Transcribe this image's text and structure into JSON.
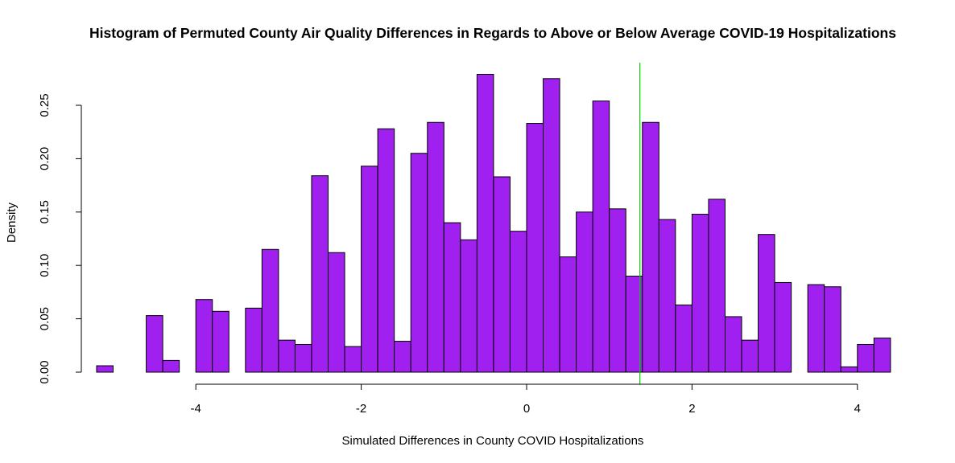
{
  "chart_data": {
    "type": "bar",
    "title": "Histogram of Permuted County Air Quality Differences in Regards to Above or Below Average COVID-19 Hospitalizations",
    "xlabel": "Simulated Differences in County COVID Hospitalizations",
    "ylabel": "Density",
    "xlim": [
      -5.2,
      4.4
    ],
    "ylim": [
      0,
      0.29
    ],
    "x_ticks": [
      "-4",
      "-2",
      "0",
      "2",
      "4"
    ],
    "x_tick_values": [
      -4,
      -2,
      0,
      2,
      4
    ],
    "y_ticks": [
      "0.00",
      "0.05",
      "0.10",
      "0.15",
      "0.20",
      "0.25"
    ],
    "y_tick_values": [
      0,
      0.05,
      0.1,
      0.15,
      0.2,
      0.25
    ],
    "bin_width": 0.2,
    "bins": [
      {
        "x0": -5.2,
        "x1": -5.0,
        "density": 0.006
      },
      {
        "x0": -5.0,
        "x1": -4.8,
        "density": 0.0
      },
      {
        "x0": -4.8,
        "x1": -4.6,
        "density": 0.0
      },
      {
        "x0": -4.6,
        "x1": -4.4,
        "density": 0.053
      },
      {
        "x0": -4.4,
        "x1": -4.2,
        "density": 0.011
      },
      {
        "x0": -4.2,
        "x1": -4.0,
        "density": 0.0
      },
      {
        "x0": -4.0,
        "x1": -3.8,
        "density": 0.068
      },
      {
        "x0": -3.8,
        "x1": -3.6,
        "density": 0.057
      },
      {
        "x0": -3.6,
        "x1": -3.4,
        "density": 0.0
      },
      {
        "x0": -3.4,
        "x1": -3.2,
        "density": 0.06
      },
      {
        "x0": -3.2,
        "x1": -3.0,
        "density": 0.115
      },
      {
        "x0": -3.0,
        "x1": -2.8,
        "density": 0.03
      },
      {
        "x0": -2.8,
        "x1": -2.6,
        "density": 0.026
      },
      {
        "x0": -2.6,
        "x1": -2.4,
        "density": 0.184
      },
      {
        "x0": -2.4,
        "x1": -2.2,
        "density": 0.112
      },
      {
        "x0": -2.2,
        "x1": -2.0,
        "density": 0.024
      },
      {
        "x0": -2.0,
        "x1": -1.8,
        "density": 0.193
      },
      {
        "x0": -1.8,
        "x1": -1.6,
        "density": 0.228
      },
      {
        "x0": -1.6,
        "x1": -1.4,
        "density": 0.029
      },
      {
        "x0": -1.4,
        "x1": -1.2,
        "density": 0.205
      },
      {
        "x0": -1.2,
        "x1": -1.0,
        "density": 0.234
      },
      {
        "x0": -1.0,
        "x1": -0.8,
        "density": 0.14
      },
      {
        "x0": -0.8,
        "x1": -0.6,
        "density": 0.124
      },
      {
        "x0": -0.6,
        "x1": -0.4,
        "density": 0.279
      },
      {
        "x0": -0.4,
        "x1": -0.2,
        "density": 0.183
      },
      {
        "x0": -0.2,
        "x1": 0.0,
        "density": 0.132
      },
      {
        "x0": 0.0,
        "x1": 0.2,
        "density": 0.233
      },
      {
        "x0": 0.2,
        "x1": 0.4,
        "density": 0.275
      },
      {
        "x0": 0.4,
        "x1": 0.6,
        "density": 0.108
      },
      {
        "x0": 0.6,
        "x1": 0.8,
        "density": 0.15
      },
      {
        "x0": 0.8,
        "x1": 1.0,
        "density": 0.254
      },
      {
        "x0": 1.0,
        "x1": 1.2,
        "density": 0.153
      },
      {
        "x0": 1.2,
        "x1": 1.4,
        "density": 0.09
      },
      {
        "x0": 1.4,
        "x1": 1.6,
        "density": 0.234
      },
      {
        "x0": 1.6,
        "x1": 1.8,
        "density": 0.143
      },
      {
        "x0": 1.8,
        "x1": 2.0,
        "density": 0.063
      },
      {
        "x0": 2.0,
        "x1": 2.2,
        "density": 0.148
      },
      {
        "x0": 2.2,
        "x1": 2.4,
        "density": 0.162
      },
      {
        "x0": 2.4,
        "x1": 2.6,
        "density": 0.052
      },
      {
        "x0": 2.6,
        "x1": 2.8,
        "density": 0.03
      },
      {
        "x0": 2.8,
        "x1": 3.0,
        "density": 0.129
      },
      {
        "x0": 3.0,
        "x1": 3.2,
        "density": 0.084
      },
      {
        "x0": 3.2,
        "x1": 3.4,
        "density": 0.0
      },
      {
        "x0": 3.4,
        "x1": 3.6,
        "density": 0.082
      },
      {
        "x0": 3.6,
        "x1": 3.8,
        "density": 0.08
      },
      {
        "x0": 3.8,
        "x1": 4.0,
        "density": 0.005
      },
      {
        "x0": 4.0,
        "x1": 4.2,
        "density": 0.026
      },
      {
        "x0": 4.2,
        "x1": 4.4,
        "density": 0.032
      }
    ],
    "reference_line_x": 1.37,
    "colors": {
      "bar_fill": "#a020f0",
      "bar_stroke": "#000000",
      "reference_line": "#00cd00"
    },
    "grid": false
  }
}
